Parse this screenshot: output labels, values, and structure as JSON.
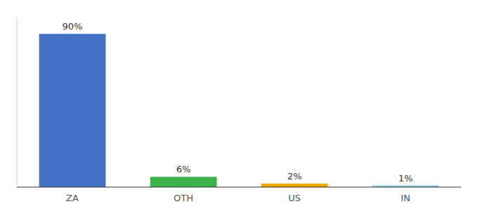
{
  "chart_data": {
    "type": "bar",
    "categories": [
      "ZA",
      "OTH",
      "US",
      "IN"
    ],
    "values": [
      90,
      6,
      2,
      1
    ],
    "value_labels": [
      "90%",
      "6%",
      "2%",
      "1%"
    ],
    "colors": [
      "#4472c4",
      "#3cb34a",
      "#f0a500",
      "#87ceeb"
    ],
    "ylim": [
      0,
      100
    ],
    "data_labels": true,
    "tick_labels": "x",
    "grid": false
  }
}
